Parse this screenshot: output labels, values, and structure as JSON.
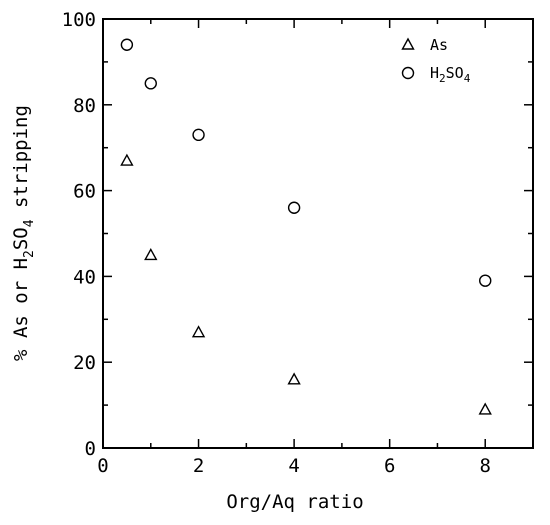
{
  "chart_data": {
    "type": "scatter",
    "xlabel": "Org/Aq ratio",
    "ylabel_parts": [
      "% As or H",
      "2",
      "SO",
      "4",
      " stripping"
    ],
    "xlim": [
      0,
      9
    ],
    "ylim": [
      0,
      100
    ],
    "xticks": [
      0,
      2,
      4,
      6,
      8
    ],
    "yticks": [
      0,
      20,
      40,
      60,
      80,
      100
    ],
    "legend_position": "top-right",
    "series": [
      {
        "name": "As",
        "marker": "triangle",
        "x": [
          0.5,
          1,
          2,
          4,
          8
        ],
        "y": [
          67,
          45,
          27,
          16,
          9
        ]
      },
      {
        "name_parts": [
          "H",
          "2",
          "SO",
          "4"
        ],
        "marker": "circle",
        "x": [
          0.5,
          1,
          2,
          4,
          8
        ],
        "y": [
          94,
          85,
          73,
          56,
          39
        ]
      }
    ]
  }
}
